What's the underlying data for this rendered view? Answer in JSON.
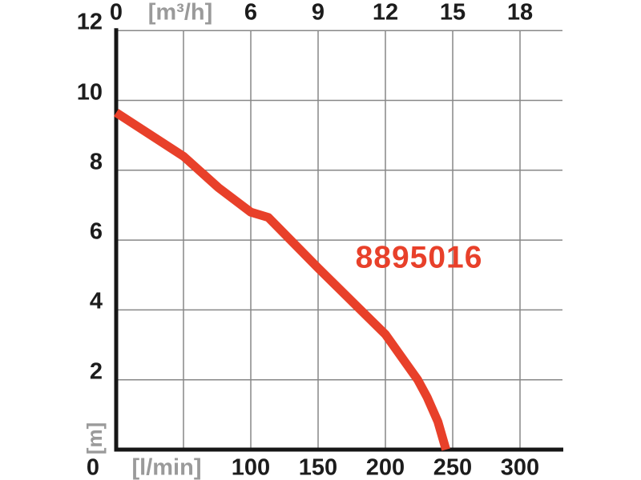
{
  "colors": {
    "curve": "#e8402a",
    "grid": "#878787",
    "axis": "#161616",
    "tick_text": "#1c1c1c",
    "unit_text": "#9a9a9a",
    "background": "#ffffff"
  },
  "chart_data": {
    "type": "line",
    "title": "",
    "annotation": "8895016",
    "series": [
      {
        "name": "8895016",
        "color": "#e8402a",
        "x_unit": "l/min",
        "y_unit": "m",
        "points": [
          [
            0,
            9.65
          ],
          [
            50,
            8.4
          ],
          [
            76,
            7.5
          ],
          [
            100,
            6.8
          ],
          [
            113,
            6.65
          ],
          [
            150,
            5.2
          ],
          [
            200,
            3.3
          ],
          [
            224,
            2.0
          ],
          [
            231,
            1.5
          ],
          [
            239,
            0.8
          ],
          [
            245,
            0
          ]
        ]
      }
    ],
    "axes": {
      "bottom": {
        "unit_label": "[l/min]",
        "tick_values": [
          0,
          100,
          150,
          200,
          250,
          300
        ],
        "tick_labels": [
          "0",
          "100",
          "150",
          "200",
          "250",
          "300"
        ],
        "range": [
          0,
          331
        ]
      },
      "top": {
        "unit_label": "[m³/h]",
        "tick_values": [
          0,
          6,
          9,
          12,
          15,
          18
        ],
        "tick_labels": [
          "0",
          "6",
          "9",
          "12",
          "15",
          "18"
        ],
        "lmin_per_m3h": 16.6667,
        "range": [
          0,
          19.9
        ]
      },
      "left": {
        "unit_label": "[m]",
        "tick_values": [
          2,
          4,
          6,
          8,
          10,
          12
        ],
        "tick_labels": [
          "2",
          "4",
          "6",
          "8",
          "10",
          "12"
        ],
        "range": [
          0,
          12
        ]
      }
    },
    "gridlines": {
      "vertical_lmin": [
        50,
        100,
        150,
        200,
        250,
        300
      ],
      "horizontal_m": [
        2,
        4,
        6,
        8,
        10,
        12
      ],
      "grid_on": true
    },
    "legend": "none"
  }
}
